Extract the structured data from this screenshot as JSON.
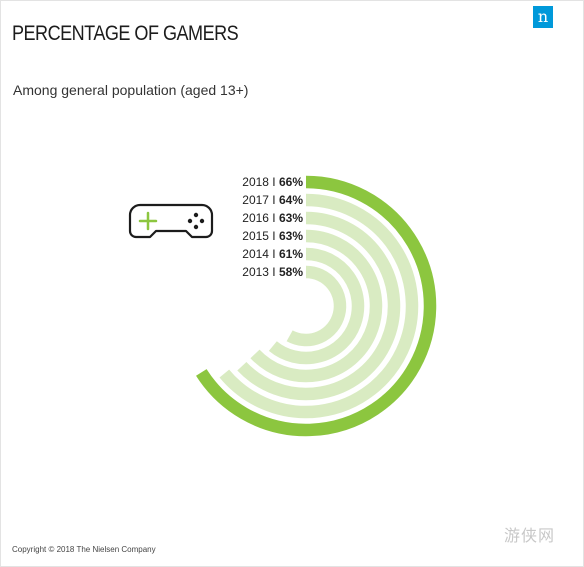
{
  "title": "PERCENTAGE OF GAMERS",
  "subtitle": "Among general population (aged 13+)",
  "logo_letter": "n",
  "copyright": "Copyright © 2018 The Nielsen Company",
  "watermark": "游侠网",
  "colors": {
    "accent": "#8cc63f",
    "light": "#d9ebc2",
    "logo": "#0099da",
    "text": "#222222"
  },
  "icons": [
    "gamepad-icon"
  ],
  "chart_data": {
    "type": "radial-bar",
    "title": "PERCENTAGE OF GAMERS",
    "subtitle": "Among general population (aged 13+)",
    "unit": "%",
    "categories": [
      "2018",
      "2017",
      "2016",
      "2015",
      "2014",
      "2013"
    ],
    "values": [
      66,
      64,
      63,
      63,
      61,
      58
    ],
    "labels": [
      "66%",
      "64%",
      "63%",
      "63%",
      "61%",
      "58%"
    ],
    "separator": "I",
    "highlight": "2018"
  }
}
